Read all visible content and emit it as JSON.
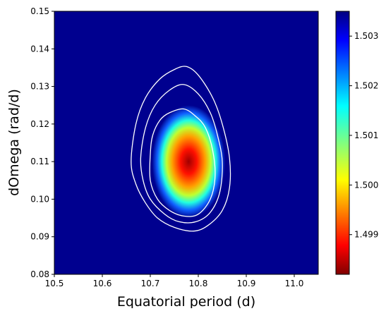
{
  "chart_data": {
    "type": "heatmap",
    "xlabel": "Equatorial period (d)",
    "ylabel": "dOmega (rad/d)",
    "xlim": [
      10.5,
      11.05
    ],
    "ylim": [
      0.08,
      0.15
    ],
    "x_ticks": [
      "10.5",
      "10.6",
      "10.7",
      "10.8",
      "10.9",
      "11.0"
    ],
    "x_tick_values": [
      10.5,
      10.6,
      10.7,
      10.8,
      10.9,
      11.0
    ],
    "y_ticks": [
      "0.08",
      "0.09",
      "0.10",
      "0.11",
      "0.12",
      "0.13",
      "0.14",
      "0.15"
    ],
    "y_tick_values": [
      0.08,
      0.09,
      0.1,
      0.11,
      0.12,
      0.13,
      0.14,
      0.15
    ],
    "colormap": "jet (reversed)",
    "colorbar": {
      "min": 1.4982,
      "max": 1.5035,
      "tick_labels": [
        "1.499",
        "1.500",
        "1.501",
        "1.502",
        "1.503"
      ],
      "tick_values": [
        1.499,
        1.5,
        1.501,
        1.502,
        1.503
      ]
    },
    "minimum": {
      "x": 10.78,
      "y": 0.11,
      "value": 1.4982
    },
    "background_color": "#00008f",
    "contour_color": "#ffffff",
    "contours": [
      {
        "level": "inner",
        "points": [
          [
            10.7,
            0.112
          ],
          [
            10.705,
            0.117
          ],
          [
            10.72,
            0.121
          ],
          [
            10.74,
            0.123
          ],
          [
            10.77,
            0.124
          ],
          [
            10.795,
            0.122
          ],
          [
            10.815,
            0.119
          ],
          [
            10.83,
            0.113
          ],
          [
            10.835,
            0.106
          ],
          [
            10.825,
            0.1
          ],
          [
            10.8,
            0.096
          ],
          [
            10.77,
            0.0955
          ],
          [
            10.74,
            0.097
          ],
          [
            10.715,
            0.1
          ],
          [
            10.7,
            0.105
          ]
        ]
      },
      {
        "level": "middle",
        "points": [
          [
            10.68,
            0.111
          ],
          [
            10.69,
            0.119
          ],
          [
            10.71,
            0.125
          ],
          [
            10.74,
            0.129
          ],
          [
            10.77,
            0.1305
          ],
          [
            10.8,
            0.128
          ],
          [
            10.825,
            0.123
          ],
          [
            10.84,
            0.117
          ],
          [
            10.85,
            0.11
          ],
          [
            10.845,
            0.102
          ],
          [
            10.825,
            0.0965
          ],
          [
            10.795,
            0.094
          ],
          [
            10.76,
            0.094
          ],
          [
            10.73,
            0.096
          ],
          [
            10.7,
            0.1
          ],
          [
            10.685,
            0.105
          ]
        ]
      },
      {
        "level": "outer",
        "points": [
          [
            10.66,
            0.11
          ],
          [
            10.67,
            0.12
          ],
          [
            10.69,
            0.127
          ],
          [
            10.72,
            0.132
          ],
          [
            10.75,
            0.1345
          ],
          [
            10.775,
            0.1353
          ],
          [
            10.8,
            0.133
          ],
          [
            10.83,
            0.127
          ],
          [
            10.85,
            0.12
          ],
          [
            10.865,
            0.111
          ],
          [
            10.865,
            0.103
          ],
          [
            10.85,
            0.097
          ],
          [
            10.82,
            0.093
          ],
          [
            10.79,
            0.0915
          ],
          [
            10.75,
            0.0925
          ],
          [
            10.715,
            0.095
          ],
          [
            10.69,
            0.099
          ],
          [
            10.67,
            0.104
          ]
        ]
      }
    ]
  }
}
